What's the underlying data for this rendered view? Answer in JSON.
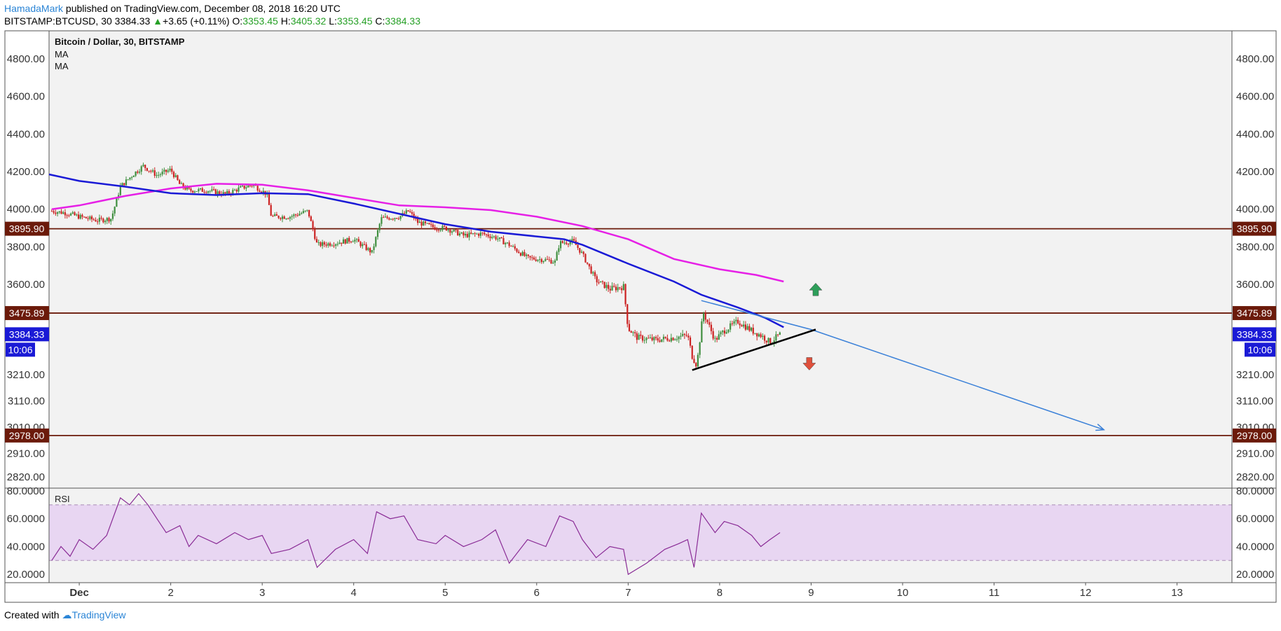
{
  "header": {
    "author": "HamadaMark",
    "published": "published on TradingView.com, December 08, 2018 16:20 UTC",
    "symbol": "BITSTAMP:BTCUSD, 30",
    "last": "3384.33",
    "change": "+3.65 (+0.11%)",
    "o_label": "O:",
    "o": "3353.45",
    "h_label": "H:",
    "h": "3405.32",
    "l_label": "L:",
    "l": "3353.45",
    "c_label": "C:",
    "c": "3384.33"
  },
  "footer": {
    "created": "Created with",
    "brand": "TradingView"
  },
  "colors": {
    "ma_fast": "#1a1ad6",
    "ma_slow": "#e620e6",
    "level": "#6b1a0a",
    "trend": "#3a80d8",
    "rsi": "#8a2c96",
    "up": "#2e9e5a",
    "down": "#e0503c",
    "candle_up": "#3f8f3f",
    "candle_down": "#cc2222"
  },
  "chart_data": {
    "type": "candlestick",
    "title": "Bitcoin / Dollar, 30, BITSTAMP",
    "legend": [
      "MA",
      "MA"
    ],
    "y_ticks": [
      "4800.00",
      "4600.00",
      "4400.00",
      "4200.00",
      "4000.00",
      "3800.00",
      "3600.00",
      "3210.00",
      "3110.00",
      "3010.00",
      "2910.00",
      "2820.00"
    ],
    "x_ticks": [
      "Dec",
      "2",
      "3",
      "4",
      "5",
      "6",
      "7",
      "8",
      "9",
      "10",
      "11",
      "12",
      "13"
    ],
    "x_tick_days": [
      1,
      2,
      3,
      4,
      5,
      6,
      7,
      8,
      9,
      10,
      11,
      12,
      13
    ],
    "x_range_days": [
      0.67,
      13.6
    ],
    "levels": [
      {
        "price": 3895.9,
        "label": "3895.90"
      },
      {
        "price": 3475.89,
        "label": "3475.89"
      },
      {
        "price": 2978.0,
        "label": "2978.00"
      }
    ],
    "last_price": {
      "price": 3384.33,
      "label": "3384.33",
      "countdown": "10:06"
    },
    "price_path": [
      [
        0.7,
        3990
      ],
      [
        0.85,
        3980
      ],
      [
        1.0,
        3960
      ],
      [
        1.2,
        3940
      ],
      [
        1.35,
        3950
      ],
      [
        1.45,
        4120
      ],
      [
        1.6,
        4190
      ],
      [
        1.7,
        4230
      ],
      [
        1.85,
        4180
      ],
      [
        2.0,
        4210
      ],
      [
        2.1,
        4130
      ],
      [
        2.2,
        4100
      ],
      [
        2.4,
        4100
      ],
      [
        2.6,
        4080
      ],
      [
        2.75,
        4110
      ],
      [
        2.9,
        4130
      ],
      [
        3.05,
        4080
      ],
      [
        3.1,
        3960
      ],
      [
        3.3,
        3960
      ],
      [
        3.5,
        3990
      ],
      [
        3.6,
        3810
      ],
      [
        3.8,
        3820
      ],
      [
        4.0,
        3840
      ],
      [
        4.2,
        3770
      ],
      [
        4.3,
        3950
      ],
      [
        4.5,
        3960
      ],
      [
        4.6,
        3990
      ],
      [
        4.7,
        3930
      ],
      [
        4.9,
        3900
      ],
      [
        5.0,
        3900
      ],
      [
        5.2,
        3860
      ],
      [
        5.4,
        3870
      ],
      [
        5.55,
        3850
      ],
      [
        5.7,
        3810
      ],
      [
        5.9,
        3740
      ],
      [
        6.1,
        3730
      ],
      [
        6.2,
        3720
      ],
      [
        6.25,
        3820
      ],
      [
        6.4,
        3830
      ],
      [
        6.5,
        3760
      ],
      [
        6.65,
        3620
      ],
      [
        6.8,
        3580
      ],
      [
        6.95,
        3590
      ],
      [
        7.0,
        3410
      ],
      [
        7.1,
        3370
      ],
      [
        7.3,
        3360
      ],
      [
        7.5,
        3370
      ],
      [
        7.65,
        3380
      ],
      [
        7.7,
        3290
      ],
      [
        7.75,
        3250
      ],
      [
        7.82,
        3480
      ],
      [
        7.95,
        3360
      ],
      [
        8.05,
        3400
      ],
      [
        8.2,
        3440
      ],
      [
        8.35,
        3400
      ],
      [
        8.45,
        3380
      ],
      [
        8.55,
        3350
      ],
      [
        8.66,
        3384
      ]
    ],
    "ma_fast": [
      [
        0.67,
        4185
      ],
      [
        1.0,
        4150
      ],
      [
        1.5,
        4120
      ],
      [
        2.0,
        4085
      ],
      [
        2.5,
        4075
      ],
      [
        3.0,
        4085
      ],
      [
        3.5,
        4080
      ],
      [
        4.0,
        4030
      ],
      [
        4.5,
        3975
      ],
      [
        5.0,
        3920
      ],
      [
        5.5,
        3880
      ],
      [
        6.0,
        3855
      ],
      [
        6.3,
        3840
      ],
      [
        6.5,
        3810
      ],
      [
        7.0,
        3710
      ],
      [
        7.5,
        3615
      ],
      [
        7.8,
        3555
      ],
      [
        8.2,
        3500
      ],
      [
        8.5,
        3455
      ],
      [
        8.7,
        3415
      ]
    ],
    "ma_slow": [
      [
        0.7,
        4000
      ],
      [
        1.0,
        4020
      ],
      [
        1.5,
        4070
      ],
      [
        2.0,
        4110
      ],
      [
        2.5,
        4135
      ],
      [
        3.0,
        4130
      ],
      [
        3.5,
        4100
      ],
      [
        4.0,
        4060
      ],
      [
        4.5,
        4020
      ],
      [
        5.0,
        4010
      ],
      [
        5.5,
        3995
      ],
      [
        6.0,
        3960
      ],
      [
        6.5,
        3910
      ],
      [
        7.0,
        3840
      ],
      [
        7.5,
        3735
      ],
      [
        8.0,
        3680
      ],
      [
        8.4,
        3650
      ],
      [
        8.7,
        3615
      ]
    ],
    "trendline_upper": [
      [
        7.8,
        3530
      ],
      [
        9.0,
        3405
      ],
      [
        12.2,
        3000
      ]
    ],
    "trendline_lower": [
      [
        7.7,
        3230
      ],
      [
        9.05,
        3405
      ]
    ],
    "arrow_up": {
      "day": 9.05,
      "price": 3575
    },
    "arrow_down": {
      "day": 8.98,
      "price": 3260
    },
    "rsi": {
      "label": "RSI",
      "ticks": [
        "80.0000",
        "60.0000",
        "40.0000",
        "20.0000"
      ],
      "tick_values": [
        80,
        60,
        40,
        20
      ],
      "band": [
        30,
        70
      ],
      "range": [
        14,
        82
      ],
      "values": [
        [
          0.7,
          30
        ],
        [
          0.8,
          40
        ],
        [
          0.9,
          33
        ],
        [
          1.0,
          45
        ],
        [
          1.15,
          38
        ],
        [
          1.3,
          48
        ],
        [
          1.45,
          75
        ],
        [
          1.55,
          70
        ],
        [
          1.65,
          78
        ],
        [
          1.75,
          70
        ],
        [
          1.85,
          60
        ],
        [
          1.95,
          50
        ],
        [
          2.1,
          55
        ],
        [
          2.2,
          40
        ],
        [
          2.3,
          48
        ],
        [
          2.5,
          42
        ],
        [
          2.7,
          50
        ],
        [
          2.85,
          45
        ],
        [
          3.0,
          48
        ],
        [
          3.1,
          35
        ],
        [
          3.3,
          38
        ],
        [
          3.5,
          45
        ],
        [
          3.6,
          25
        ],
        [
          3.8,
          38
        ],
        [
          4.0,
          45
        ],
        [
          4.15,
          35
        ],
        [
          4.25,
          65
        ],
        [
          4.4,
          60
        ],
        [
          4.55,
          62
        ],
        [
          4.7,
          45
        ],
        [
          4.9,
          42
        ],
        [
          5.0,
          48
        ],
        [
          5.2,
          40
        ],
        [
          5.4,
          45
        ],
        [
          5.55,
          52
        ],
        [
          5.7,
          28
        ],
        [
          5.9,
          45
        ],
        [
          6.1,
          40
        ],
        [
          6.25,
          62
        ],
        [
          6.4,
          58
        ],
        [
          6.5,
          45
        ],
        [
          6.65,
          32
        ],
        [
          6.8,
          40
        ],
        [
          6.95,
          38
        ],
        [
          7.0,
          20
        ],
        [
          7.2,
          28
        ],
        [
          7.4,
          38
        ],
        [
          7.55,
          42
        ],
        [
          7.65,
          45
        ],
        [
          7.72,
          25
        ],
        [
          7.8,
          64
        ],
        [
          7.95,
          50
        ],
        [
          8.05,
          58
        ],
        [
          8.2,
          55
        ],
        [
          8.35,
          48
        ],
        [
          8.45,
          40
        ],
        [
          8.55,
          45
        ],
        [
          8.66,
          50
        ]
      ]
    }
  }
}
